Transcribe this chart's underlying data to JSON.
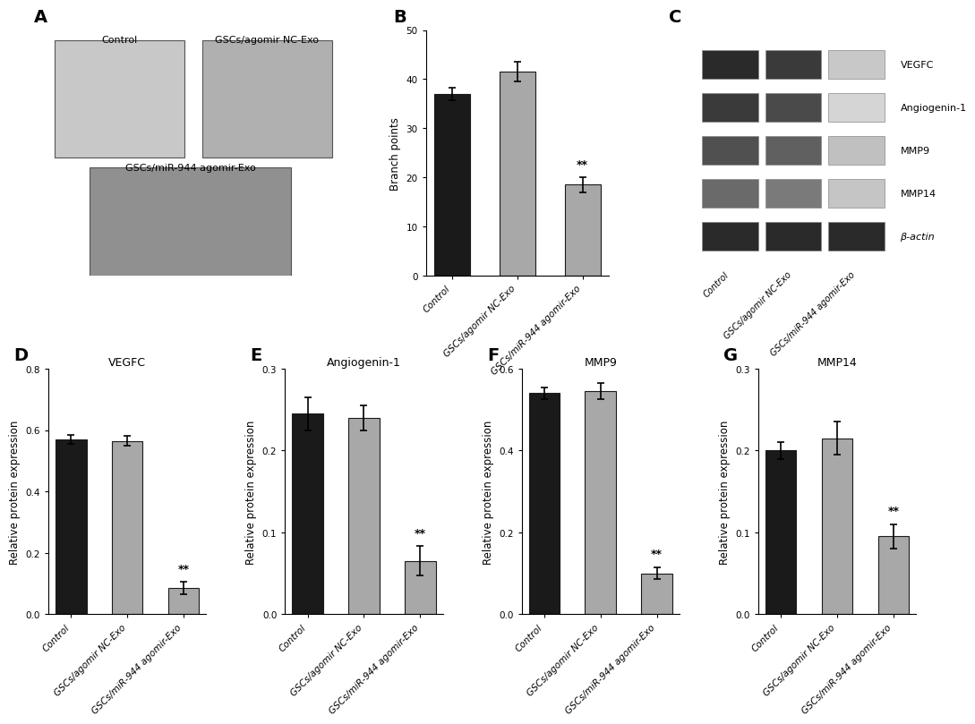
{
  "panel_B": {
    "categories": [
      "Control",
      "GSCs/agomir NC-Exo",
      "GSCs/miR-944 agomir-Exo"
    ],
    "values": [
      37.0,
      41.5,
      18.5
    ],
    "errors": [
      1.2,
      2.0,
      1.5
    ],
    "colors": [
      "#1a1a1a",
      "#a8a8a8",
      "#a8a8a8"
    ],
    "ylabel": "Branch points",
    "ylim": [
      0,
      50
    ],
    "yticks": [
      0,
      10,
      20,
      30,
      40,
      50
    ],
    "sig_label": "**",
    "sig_bar_idx": 2
  },
  "panel_D": {
    "title": "VEGFC",
    "categories": [
      "Control",
      "GSCs/agomir NC-Exo",
      "GSCs/miR-944 agomir-Exo"
    ],
    "values": [
      0.57,
      0.565,
      0.085
    ],
    "errors": [
      0.015,
      0.015,
      0.02
    ],
    "colors": [
      "#1a1a1a",
      "#a8a8a8",
      "#a8a8a8"
    ],
    "ylabel": "Relative protein expression",
    "ylim": [
      0,
      0.8
    ],
    "yticks": [
      0.0,
      0.2,
      0.4,
      0.6,
      0.8
    ],
    "sig_label": "**",
    "sig_bar_idx": 2
  },
  "panel_E": {
    "title": "Angiogenin-1",
    "categories": [
      "Control",
      "GSCs/agomir NC-Exo",
      "GSCs/miR-944 agomir-Exo"
    ],
    "values": [
      0.245,
      0.24,
      0.065
    ],
    "errors": [
      0.02,
      0.015,
      0.018
    ],
    "colors": [
      "#1a1a1a",
      "#a8a8a8",
      "#a8a8a8"
    ],
    "ylabel": "Relative protein expression",
    "ylim": [
      0,
      0.3
    ],
    "yticks": [
      0.0,
      0.1,
      0.2,
      0.3
    ],
    "sig_label": "**",
    "sig_bar_idx": 2
  },
  "panel_F": {
    "title": "MMP9",
    "categories": [
      "Control",
      "GSCs/agomir NC-Exo",
      "GSCs/miR-944 agomir-Exo"
    ],
    "values": [
      0.54,
      0.545,
      0.1
    ],
    "errors": [
      0.015,
      0.02,
      0.015
    ],
    "colors": [
      "#1a1a1a",
      "#a8a8a8",
      "#a8a8a8"
    ],
    "ylabel": "Relative protein expression",
    "ylim": [
      0,
      0.6
    ],
    "yticks": [
      0.0,
      0.2,
      0.4,
      0.6
    ],
    "sig_label": "**",
    "sig_bar_idx": 2
  },
  "panel_G": {
    "title": "MMP14",
    "categories": [
      "Control",
      "GSCs/agomir NC-Exo",
      "GSCs/miR-944 agomir-Exo"
    ],
    "values": [
      0.2,
      0.215,
      0.095
    ],
    "errors": [
      0.01,
      0.02,
      0.015
    ],
    "colors": [
      "#1a1a1a",
      "#a8a8a8",
      "#a8a8a8"
    ],
    "ylabel": "Relative protein expression",
    "ylim": [
      0,
      0.3
    ],
    "yticks": [
      0.0,
      0.1,
      0.2,
      0.3
    ],
    "sig_label": "**",
    "sig_bar_idx": 2
  },
  "panel_A_labels": {
    "top_left_label": "Control",
    "top_right_label": "GSCs/agomir NC-Exo",
    "bottom_label": "GSCs/miR-944 agomir-Exo"
  },
  "panel_C_labels": [
    "VEGFC",
    "Angiogenin-1",
    "MMP9",
    "MMP14",
    "β-actin"
  ],
  "panel_C_xlabels": [
    "Control",
    "GSCs/agomir NC-Exo",
    "GSCs/miR-944 agomir-Exo"
  ],
  "bg_color": "#ffffff",
  "bar_width": 0.55,
  "tick_label_fontsize": 7.5,
  "axis_label_fontsize": 8.5,
  "title_fontsize": 9,
  "panel_label_fontsize": 14
}
